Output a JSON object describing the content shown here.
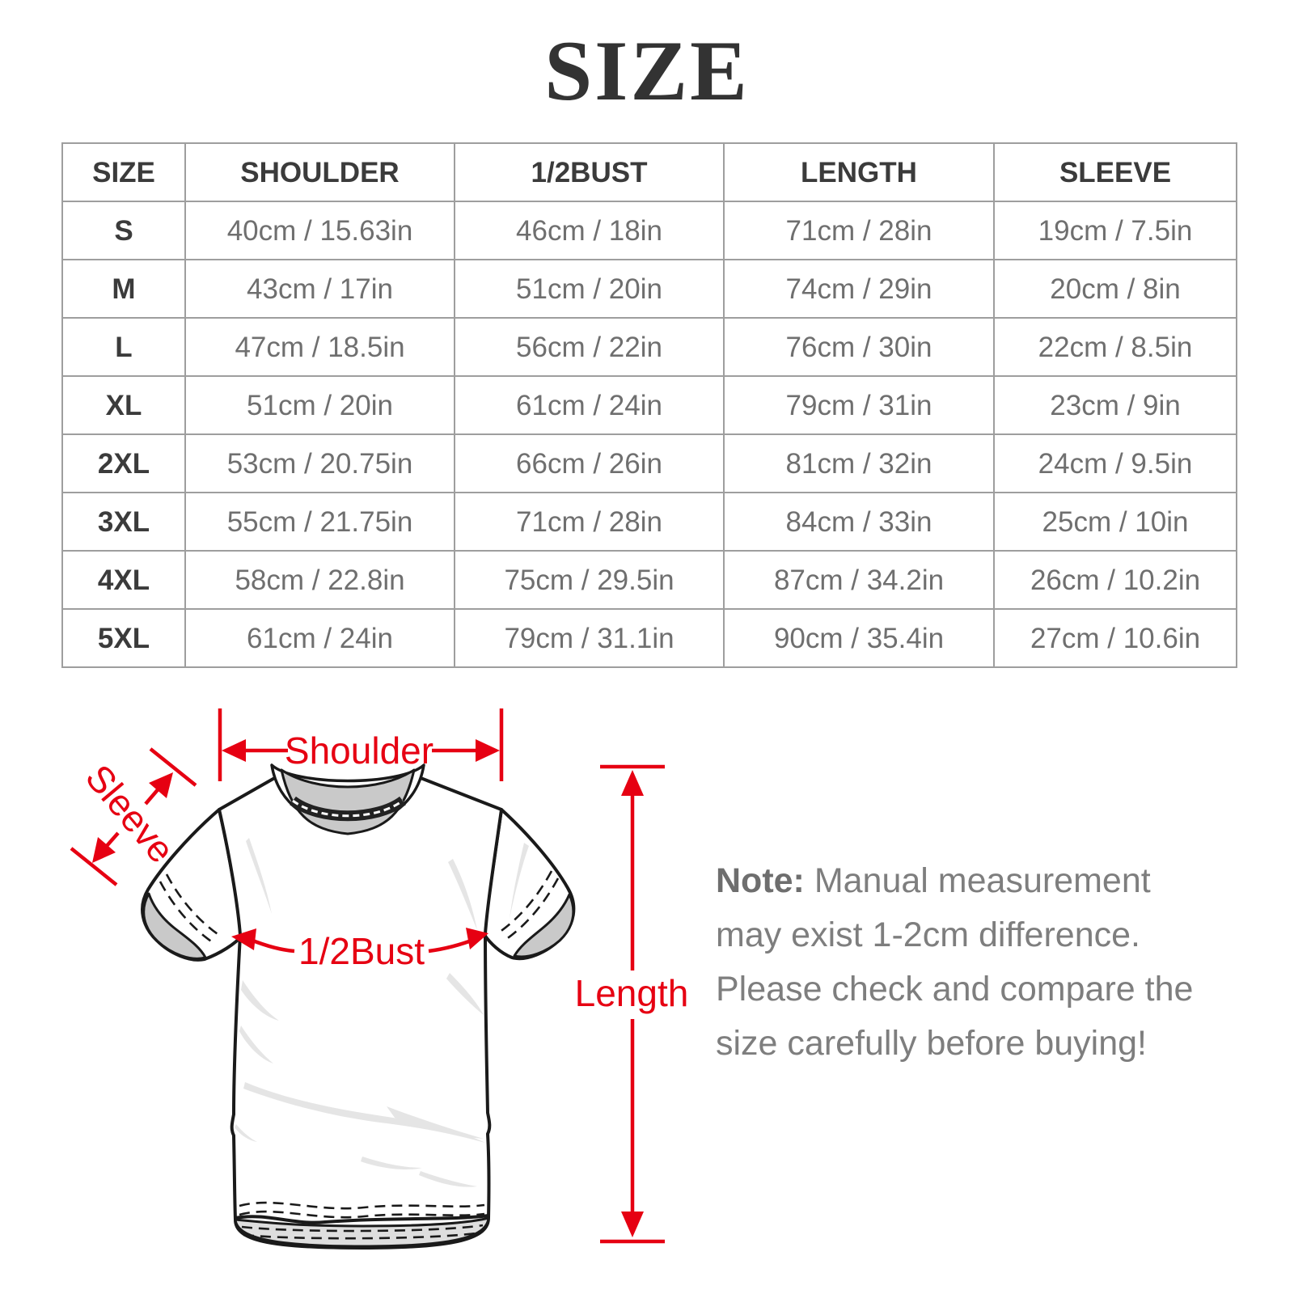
{
  "page": {
    "title": "SIZE"
  },
  "table": {
    "headers": [
      "SIZE",
      "SHOULDER",
      "1/2BUST",
      "LENGTH",
      "SLEEVE"
    ],
    "rows": [
      [
        "S",
        "40cm / 15.63in",
        "46cm / 18in",
        "71cm / 28in",
        "19cm / 7.5in"
      ],
      [
        "M",
        "43cm / 17in",
        "51cm / 20in",
        "74cm / 29in",
        "20cm / 8in"
      ],
      [
        "L",
        "47cm / 18.5in",
        "56cm / 22in",
        "76cm / 30in",
        "22cm / 8.5in"
      ],
      [
        "XL",
        "51cm / 20in",
        "61cm / 24in",
        "79cm / 31in",
        "23cm / 9in"
      ],
      [
        "2XL",
        "53cm / 20.75in",
        "66cm / 26in",
        "81cm / 32in",
        "24cm / 9.5in"
      ],
      [
        "3XL",
        "55cm / 21.75in",
        "71cm / 28in",
        "84cm / 33in",
        "25cm / 10in"
      ],
      [
        "4XL",
        "58cm / 22.8in",
        "75cm / 29.5in",
        "87cm / 34.2in",
        "26cm / 10.2in"
      ],
      [
        "5XL",
        "61cm / 24in",
        "79cm / 31.1in",
        "90cm / 35.4in",
        "27cm / 10.6in"
      ]
    ]
  },
  "diagram": {
    "labels": {
      "shoulder": "Shoulder",
      "sleeve": "Sleeve",
      "bust": "1/2Bust",
      "length": "Length"
    }
  },
  "note": {
    "label": "Note:",
    "text": " Manual measurement may exist 1-2cm difference. Please check and compare the size carefully before buying!"
  },
  "colors": {
    "accent": "#e60012",
    "table_border": "#9e9e9e",
    "header_text": "#3b3b3b",
    "data_text": "#6f6f6f",
    "note_text": "#7e7e7e",
    "title_text": "#333333"
  }
}
